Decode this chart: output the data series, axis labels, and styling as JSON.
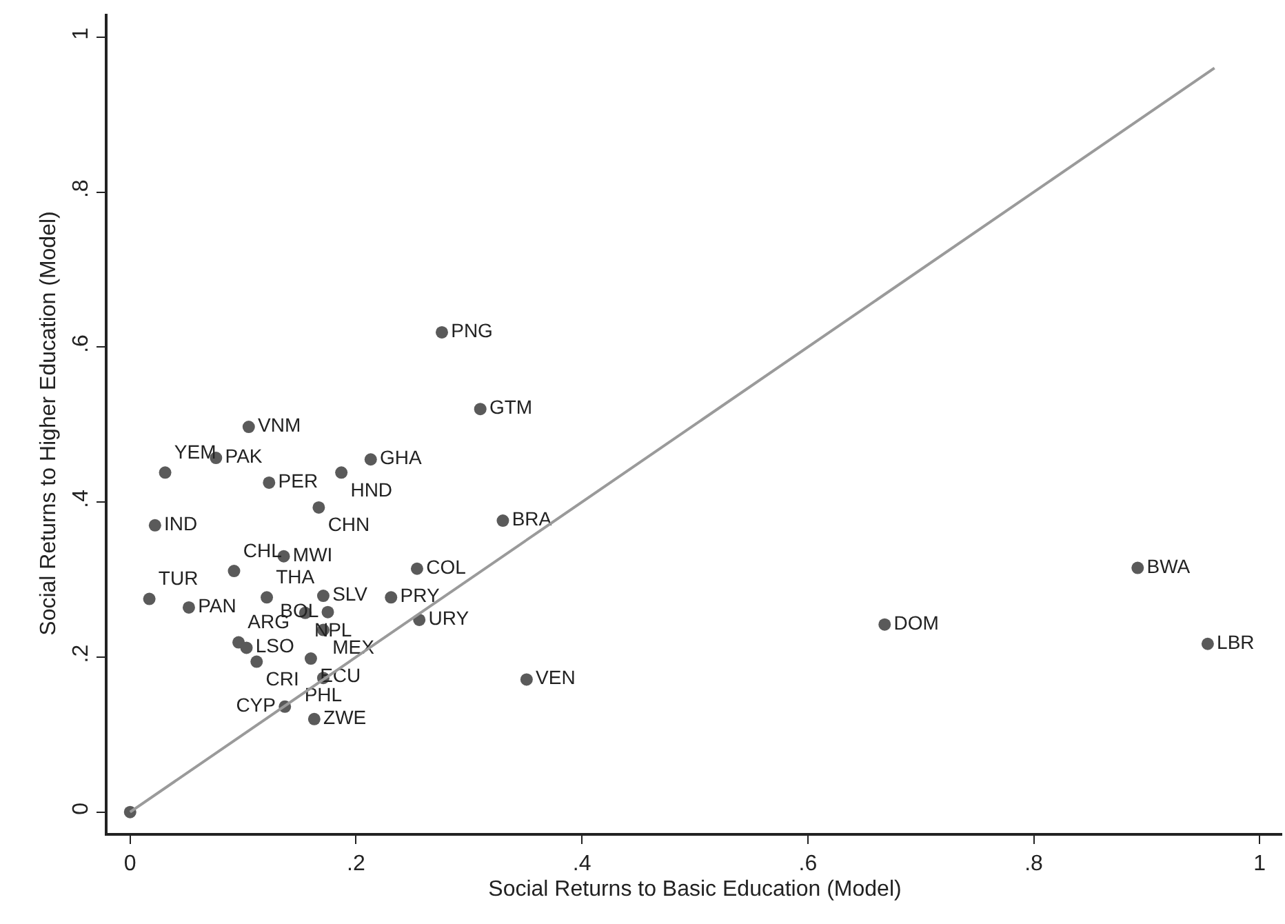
{
  "chart_data": {
    "type": "scatter",
    "xlabel": "Social Returns to Basic Education (Model)",
    "ylabel": "Social Returns to Higher Education (Model)",
    "xlim": [
      -0.02,
      1.02
    ],
    "ylim": [
      -0.027,
      1.03
    ],
    "xticks": [
      0,
      {
        "value": 0.2,
        "label": ".2"
      },
      {
        "value": 0.4,
        "label": ".4"
      },
      {
        "value": 0.6,
        "label": ".6"
      },
      {
        "value": 0.8,
        "label": ".8"
      },
      1
    ],
    "yticks": [
      0,
      {
        "value": 0.2,
        "label": ".2"
      },
      {
        "value": 0.4,
        "label": ".4"
      },
      {
        "value": 0.6,
        "label": ".6"
      },
      {
        "value": 0.8,
        "label": ".8"
      },
      1
    ],
    "grid": false,
    "marker": "circle",
    "series": [
      {
        "color": "#5a5a5a",
        "x": [
          0,
          0.668,
          0.892,
          0.954,
          0.351,
          0.276,
          0.31,
          0.33,
          0.105,
          0.076,
          0.031,
          0.123,
          0.187,
          0.213,
          0.167,
          0.022,
          0.136,
          0.092,
          0.254,
          0.017,
          0.052,
          0.121,
          0.171,
          0.231,
          0.155,
          0.175,
          0.171,
          0.256,
          0.096,
          0.103,
          0.112,
          0.16,
          0.171,
          0.137,
          0.163
        ],
        "values": [
          0,
          0.242,
          0.315,
          0.217,
          0.171,
          0.619,
          0.52,
          0.376,
          0.497,
          0.457,
          0.438,
          0.425,
          0.438,
          0.455,
          0.393,
          0.37,
          0.33,
          0.311,
          0.314,
          0.275,
          0.264,
          0.277,
          0.279,
          0.277,
          0.257,
          0.258,
          0.235,
          0.248,
          0.219,
          0.212,
          0.194,
          0.198,
          0.173,
          0.136,
          0.12
        ],
        "value_labels": [
          null,
          "DOM",
          "BWA",
          "LBR",
          "VEN",
          "PNG",
          "GTM",
          "BRA",
          "VNM",
          "PAK",
          "YEM",
          "PER",
          "HND",
          "GHA",
          "CHN",
          "IND",
          "MWI",
          "CHL",
          "COL",
          "TUR",
          "PAN",
          "THA",
          "SLV",
          "PRY",
          "NPL",
          "BOL",
          "MEX",
          "URY",
          "ARG",
          "LSO",
          "CRI",
          "ECU",
          "PHL",
          "CYP",
          "ZWE"
        ]
      },
      {
        "type": "line",
        "marker": "none",
        "color": "#9a9a9a",
        "x": [
          0,
          0.96
        ],
        "values": [
          0,
          0.96
        ]
      }
    ]
  }
}
